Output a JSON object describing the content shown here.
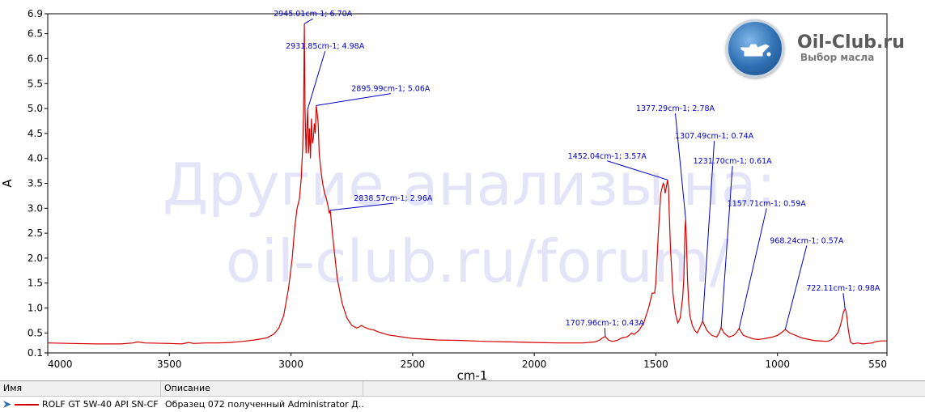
{
  "chart_data": {
    "type": "line",
    "xlabel": "cm-1",
    "ylabel": "A",
    "xlim": [
      4000,
      550
    ],
    "ylim": [
      0.1,
      6.9
    ],
    "x_reversed": true,
    "x_ticks": [
      4000,
      3500,
      3000,
      2500,
      2000,
      1500,
      1000,
      550
    ],
    "x_tick_labels": [
      "4000",
      "3500",
      "3000",
      "2500",
      "2000",
      "1500",
      "1000",
      "550"
    ],
    "y_ticks": [
      0.1,
      0.5,
      1.0,
      1.5,
      2.0,
      2.5,
      3.0,
      3.5,
      4.0,
      4.5,
      5.0,
      5.5,
      6.0,
      6.5,
      6.9
    ],
    "y_tick_labels": [
      "0.1",
      "0.5",
      "1.0",
      "1.5",
      "2.0",
      "2.5",
      "3.0",
      "3.5",
      "4.0",
      "4.5",
      "5.0",
      "5.5",
      "6.0",
      "6.5",
      "6.9"
    ],
    "grid": false,
    "line_color": "#d40000",
    "series": [
      {
        "x": [
          4000,
          3900,
          3800,
          3700,
          3650,
          3630,
          3600,
          3500,
          3450,
          3420,
          3400,
          3350,
          3300,
          3250,
          3200,
          3150,
          3100,
          3070,
          3050,
          3030,
          3010,
          2995,
          2985,
          2975,
          2965,
          2958,
          2952,
          2948,
          2945.01,
          2942,
          2938,
          2935,
          2931.85,
          2928,
          2924,
          2920,
          2916,
          2912,
          2908,
          2904,
          2900,
          2895.99,
          2892,
          2888,
          2884,
          2878,
          2870,
          2862,
          2855,
          2848,
          2843,
          2838.57,
          2830,
          2810,
          2790,
          2770,
          2750,
          2730,
          2720,
          2710,
          2700,
          2690,
          2680,
          2660,
          2640,
          2600,
          2500,
          2400,
          2300,
          2200,
          2100,
          2000,
          1900,
          1850,
          1800,
          1750,
          1730,
          1720,
          1707.96,
          1695,
          1680,
          1660,
          1640,
          1620,
          1610,
          1600,
          1590,
          1570,
          1550,
          1530,
          1515,
          1505,
          1500,
          1490,
          1480,
          1470,
          1465,
          1462,
          1458,
          1452.04,
          1448,
          1445,
          1440,
          1430,
          1420,
          1410,
          1400,
          1395,
          1390,
          1385,
          1380,
          1377.29,
          1374,
          1370,
          1365,
          1360,
          1355,
          1350,
          1340,
          1330,
          1320,
          1307.49,
          1300,
          1290,
          1270,
          1250,
          1240,
          1231.7,
          1220,
          1200,
          1180,
          1170,
          1157.71,
          1140,
          1100,
          1080,
          1060,
          1040,
          1020,
          1000,
          980,
          968.24,
          950,
          900,
          850,
          800,
          790,
          780,
          770,
          760,
          750,
          745,
          740,
          735,
          730,
          725,
          722.11,
          718,
          714,
          710,
          705,
          700,
          690,
          670,
          650,
          630,
          610,
          600,
          590,
          575,
          560,
          550
        ],
        "y": [
          0.3,
          0.29,
          0.28,
          0.28,
          0.3,
          0.32,
          0.3,
          0.29,
          0.28,
          0.31,
          0.29,
          0.3,
          0.3,
          0.31,
          0.33,
          0.36,
          0.4,
          0.48,
          0.6,
          0.85,
          1.4,
          2.0,
          2.6,
          3.0,
          3.2,
          3.6,
          4.2,
          5.0,
          6.7,
          4.9,
          4.1,
          4.6,
          4.98,
          4.1,
          4.6,
          4.0,
          4.8,
          4.3,
          4.4,
          4.7,
          4.5,
          5.06,
          4.9,
          4.7,
          4.1,
          3.8,
          3.5,
          3.3,
          3.2,
          3.05,
          2.9,
          2.96,
          2.5,
          1.6,
          1.1,
          0.8,
          0.65,
          0.6,
          0.62,
          0.65,
          0.62,
          0.6,
          0.58,
          0.56,
          0.52,
          0.46,
          0.39,
          0.36,
          0.35,
          0.33,
          0.32,
          0.31,
          0.3,
          0.3,
          0.3,
          0.32,
          0.36,
          0.4,
          0.43,
          0.36,
          0.33,
          0.35,
          0.4,
          0.42,
          0.45,
          0.5,
          0.47,
          0.55,
          0.7,
          1.0,
          1.3,
          1.3,
          1.5,
          2.5,
          3.3,
          3.5,
          3.45,
          3.3,
          3.4,
          3.57,
          3.4,
          2.9,
          2.2,
          1.3,
          0.9,
          0.7,
          0.8,
          1.0,
          1.2,
          1.6,
          2.6,
          2.78,
          2.3,
          1.6,
          1.1,
          0.85,
          0.75,
          0.65,
          0.55,
          0.5,
          0.6,
          0.74,
          0.65,
          0.55,
          0.45,
          0.42,
          0.5,
          0.61,
          0.5,
          0.42,
          0.45,
          0.5,
          0.59,
          0.45,
          0.38,
          0.37,
          0.38,
          0.4,
          0.42,
          0.45,
          0.52,
          0.57,
          0.5,
          0.4,
          0.35,
          0.33,
          0.34,
          0.36,
          0.4,
          0.45,
          0.52,
          0.6,
          0.68,
          0.78,
          0.9,
          0.96,
          0.98,
          0.93,
          0.8,
          0.6,
          0.45,
          0.32,
          0.28,
          0.3,
          0.28,
          0.29,
          0.3,
          0.32,
          0.33,
          0.34,
          0.34,
          0.34
        ]
      }
    ],
    "annotations": [
      {
        "x": 2945.01,
        "y": 6.7,
        "label": "2945.01cm-1; 6.70A",
        "lx": 2910,
        "ly": 6.8
      },
      {
        "x": 2931.85,
        "y": 4.98,
        "label": "2931.85cm-1; 4.98A",
        "lx": 2860,
        "ly": 6.15
      },
      {
        "x": 2895.99,
        "y": 5.06,
        "label": "2895.99cm-1; 5.06A",
        "lx": 2590,
        "ly": 5.3
      },
      {
        "x": 2838.57,
        "y": 2.96,
        "label": "2838.57cm-1; 2.96A",
        "lx": 2580,
        "ly": 3.1
      },
      {
        "x": 1707.96,
        "y": 0.43,
        "label": "1707.96cm-1; 0.43A",
        "lx": 1710,
        "ly": 0.6
      },
      {
        "x": 1452.04,
        "y": 3.57,
        "label": "1452.04cm-1; 3.57A",
        "lx": 1700,
        "ly": 3.95
      },
      {
        "x": 1377.29,
        "y": 2.78,
        "label": "1377.29cm-1; 2.78A",
        "lx": 1420,
        "ly": 4.9
      },
      {
        "x": 1307.49,
        "y": 0.74,
        "label": "1307.49cm-1; 0.74A",
        "lx": 1260,
        "ly": 4.35
      },
      {
        "x": 1231.7,
        "y": 0.61,
        "label": "1231.70cm-1; 0.61A",
        "lx": 1185,
        "ly": 3.85
      },
      {
        "x": 1157.71,
        "y": 0.59,
        "label": "1157.71cm-1; 0.59A",
        "lx": 1045,
        "ly": 3.0
      },
      {
        "x": 968.24,
        "y": 0.57,
        "label": "968.24cm-1; 0.57A",
        "lx": 880,
        "ly": 2.25
      },
      {
        "x": 722.11,
        "y": 0.98,
        "label": "722.11cm-1; 0.98A",
        "lx": 730,
        "ly": 1.3
      }
    ]
  },
  "watermark": {
    "line1": "Другие анализы на:",
    "line2": "oil-club.ru/forum/"
  },
  "logo": {
    "title": "Oil-Club.ru",
    "subtitle": "Выбор масла",
    "icon": "oil-can-icon"
  },
  "legend_table": {
    "col_name": "Имя",
    "col_description": "Описание",
    "rows": [
      {
        "name": "ROLF GT 5W-40 API SN-CF",
        "description": "Образец 072 полученный Administrator Д...",
        "color": "#d40000"
      }
    ]
  }
}
